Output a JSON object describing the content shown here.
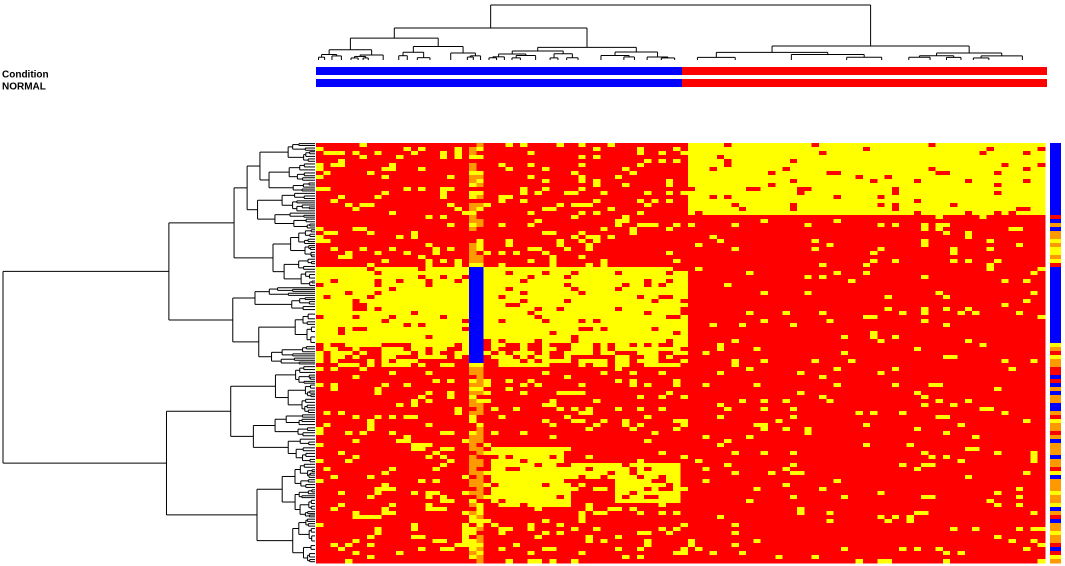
{
  "labels": {
    "condition": "Condition",
    "normal": "NORMAL"
  }
}
